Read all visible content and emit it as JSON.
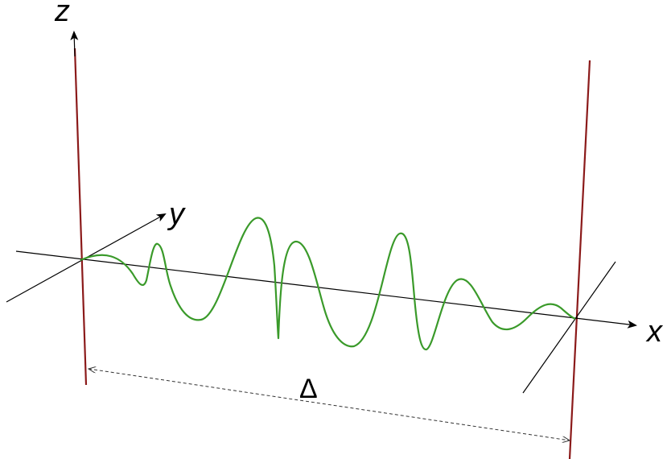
{
  "diagram": {
    "axes": {
      "x_label": "x",
      "y_label": "y",
      "z_label": "z"
    },
    "distance_label": "Δ",
    "colors": {
      "wall": "#8b1a1a",
      "wave": "#3a9a2a",
      "axis": "#000000"
    }
  }
}
